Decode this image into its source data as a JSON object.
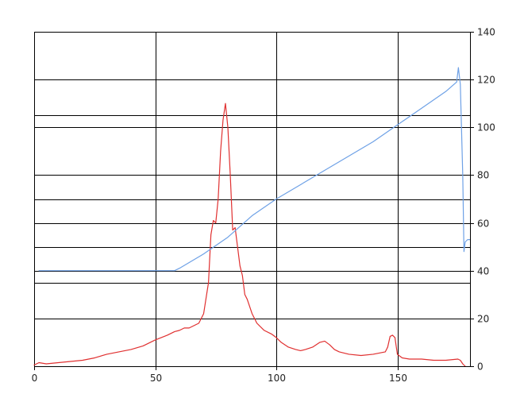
{
  "chart_data": {
    "type": "line",
    "title": "",
    "xlabel": "",
    "ylabel": "",
    "xlim": [
      0,
      180
    ],
    "ylim": [
      0,
      140
    ],
    "grid": true,
    "legend": "none",
    "x_axis": {
      "ticks": [
        0,
        50,
        100,
        150
      ],
      "tick_labels": [
        "0",
        "50",
        "100",
        "150"
      ]
    },
    "y_axis": {
      "side": "right",
      "ticks": [
        0,
        20,
        40,
        60,
        80,
        100,
        120,
        140
      ],
      "tick_labels": [
        "0",
        "20",
        "40",
        "60",
        "80",
        "100",
        "120",
        "140"
      ]
    },
    "extra_horizontal_gridlines": [
      35,
      50,
      70,
      105
    ],
    "series": [
      {
        "color": "#e03030",
        "x": [
          0,
          2,
          5,
          10,
          15,
          20,
          25,
          30,
          35,
          40,
          45,
          50,
          55,
          58,
          60,
          62,
          64,
          66,
          68,
          70,
          72,
          73,
          74,
          75,
          76,
          77,
          78,
          79,
          80,
          81,
          82,
          83,
          84,
          85,
          86,
          87,
          88,
          90,
          92,
          95,
          98,
          100,
          102,
          105,
          108,
          110,
          112,
          115,
          118,
          120,
          122,
          124,
          126,
          130,
          135,
          140,
          145,
          146,
          147,
          148,
          149,
          150,
          152,
          155,
          160,
          165,
          170,
          175,
          176,
          177,
          178
        ],
        "y": [
          0.5,
          1.5,
          1,
          1.5,
          2,
          2.5,
          3.5,
          5,
          6,
          7,
          8.5,
          11,
          13,
          14.5,
          15,
          16,
          16,
          17,
          18,
          22,
          35,
          55,
          61,
          60,
          70,
          90,
          103,
          110,
          100,
          80,
          57,
          58,
          50,
          42,
          38,
          30,
          28,
          22,
          18,
          15,
          13.5,
          12,
          10,
          8,
          7,
          6.5,
          7,
          8,
          10,
          10.5,
          9,
          7,
          6,
          5,
          4.5,
          5,
          6,
          8,
          12.5,
          13,
          12,
          5,
          3.5,
          3,
          3,
          2.5,
          2.5,
          3,
          2.5,
          1,
          0
        ]
      },
      {
        "color": "#6ea1e6",
        "x": [
          2,
          20,
          40,
          58,
          60,
          70,
          80,
          90,
          100,
          110,
          120,
          130,
          140,
          150,
          160,
          170,
          174.5,
          175.2,
          176,
          177,
          177.5,
          178,
          179,
          180
        ],
        "y": [
          40,
          40,
          40,
          40,
          41,
          47,
          54,
          63,
          70,
          76,
          82,
          88,
          94,
          101,
          108,
          115,
          119,
          125,
          118,
          80,
          48,
          52,
          53,
          53
        ]
      }
    ]
  }
}
